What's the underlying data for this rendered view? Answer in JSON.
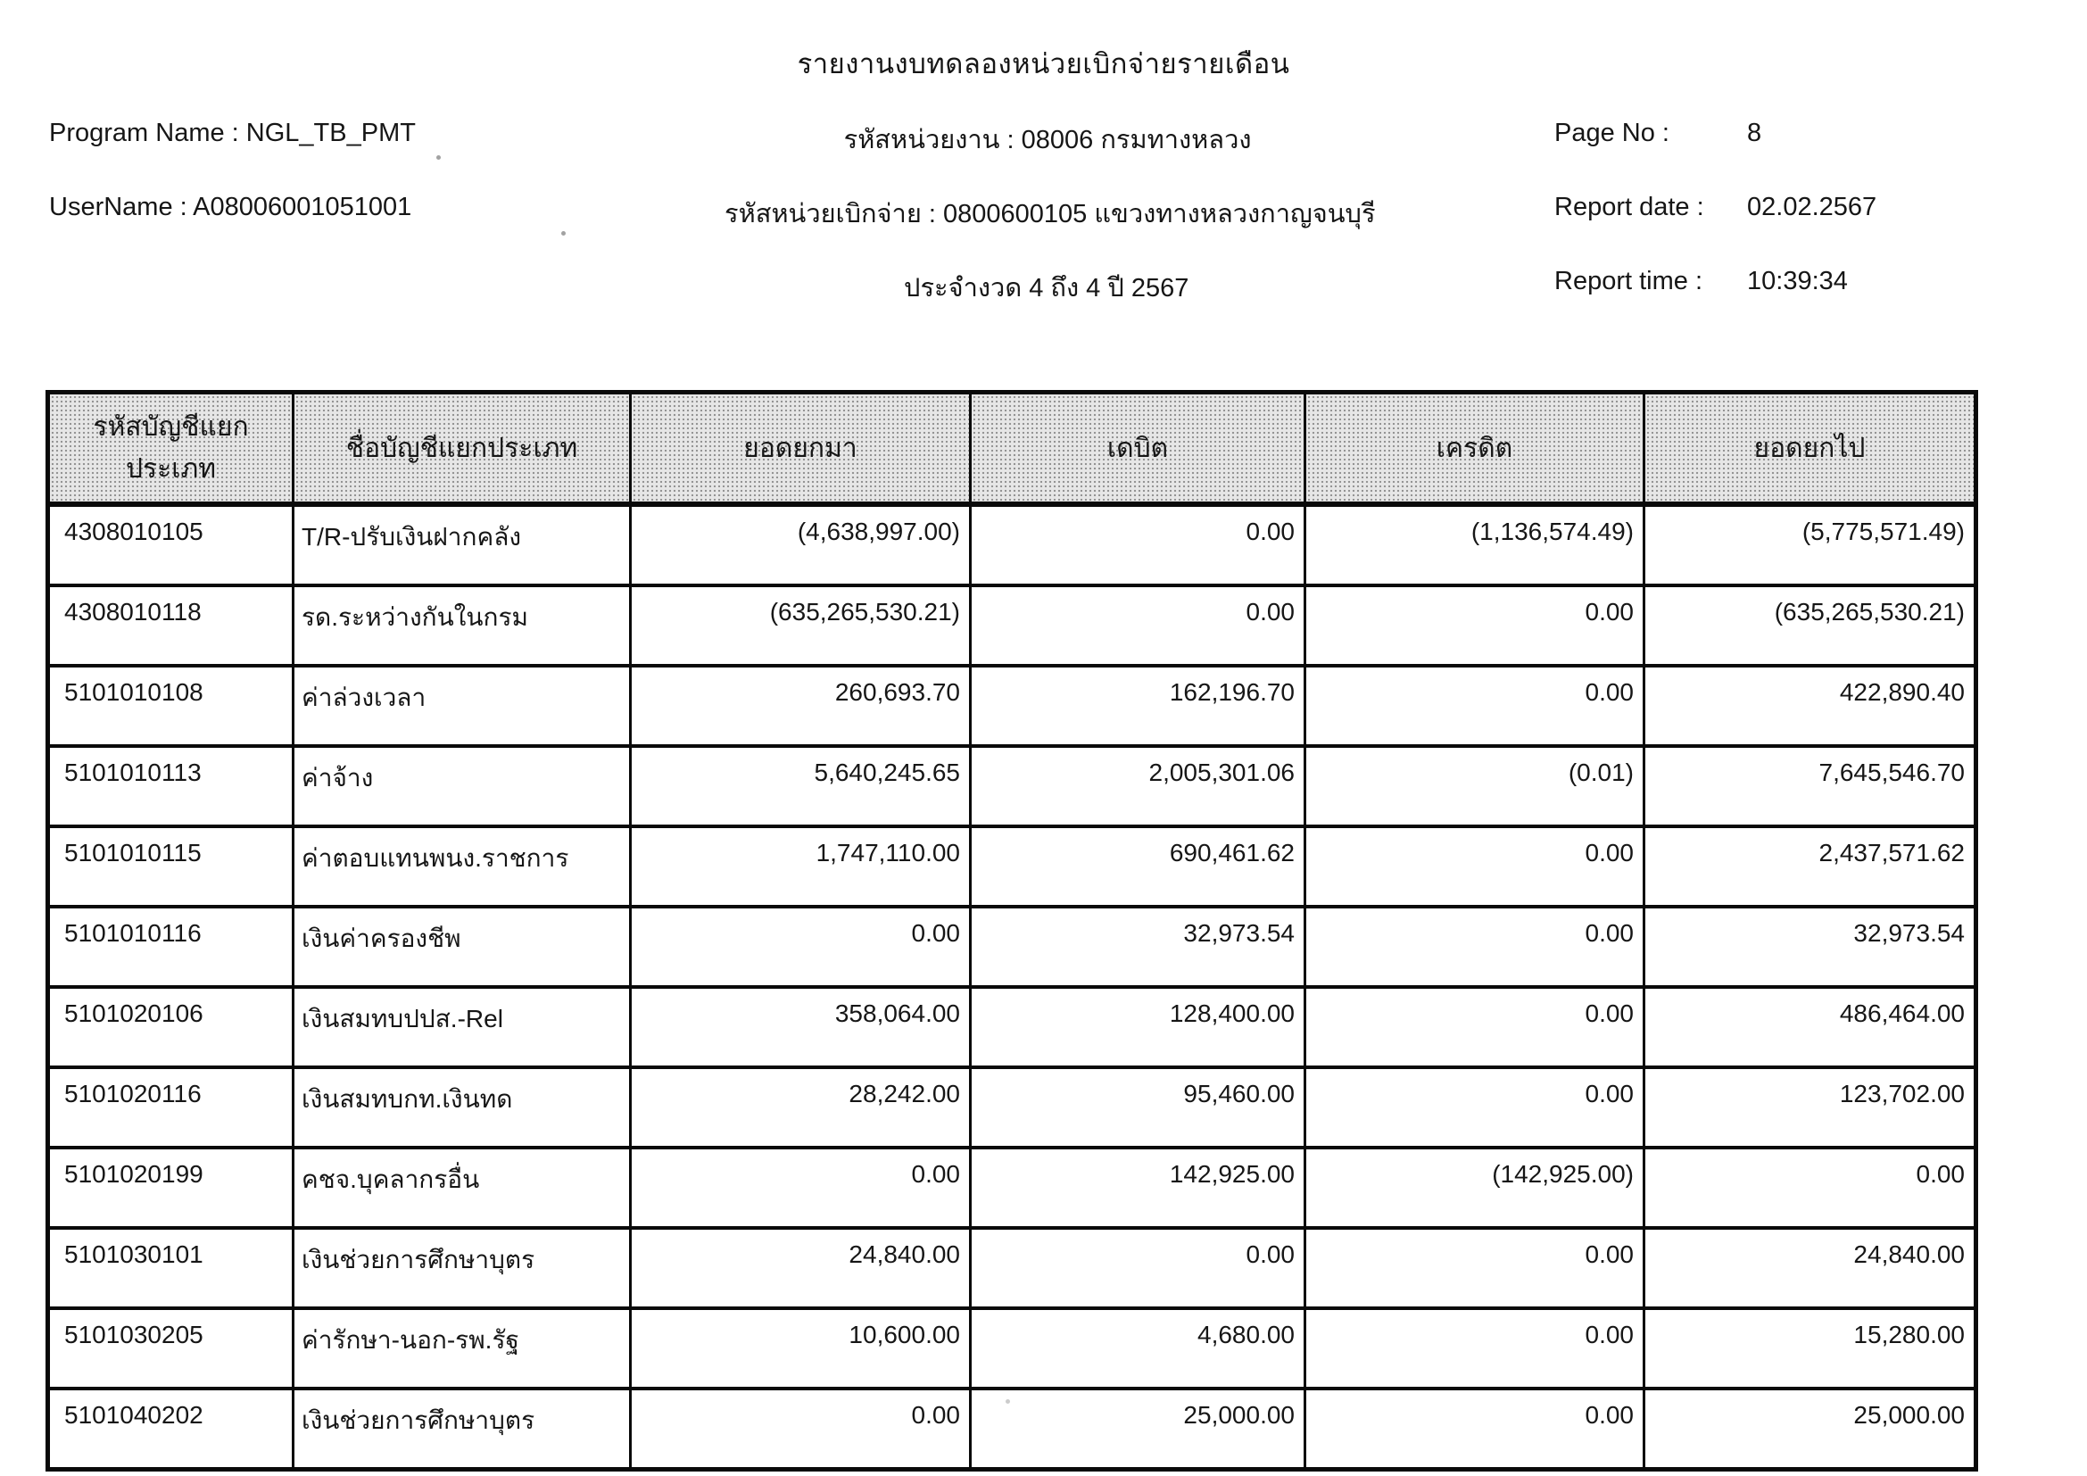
{
  "report": {
    "title": "รายงานงบทดลองหน่วยเบิกจ่ายรายเดือน",
    "program_name_label": "Program Name :",
    "program_name_value": "NGL_TB_PMT",
    "username_label": "UserName :",
    "username_value": "A08006001051001",
    "agency_line": "รหัสหน่วยงาน : 08006 กรมทางหลวง",
    "disbursing_unit_line": "รหัสหน่วยเบิกจ่าย : 0800600105 แขวงทางหลวงกาญจนบุรี",
    "period_line": "ประจำงวด 4 ถึง 4 ปี 2567",
    "page_no_label": "Page No :",
    "page_no_value": "8",
    "report_date_label": "Report date :",
    "report_date_value": "02.02.2567",
    "report_time_label": "Report time :",
    "report_time_value": "10:39:34"
  },
  "table": {
    "headers": [
      "รหัสบัญชีแยกประเภท",
      "ชื่อบัญชีแยกประเภท",
      "ยอดยกมา",
      "เดบิต",
      "เครดิต",
      "ยอดยกไป"
    ],
    "column_roles": [
      "account-code",
      "account-name",
      "beginning-balance",
      "debit",
      "credit",
      "ending-balance"
    ],
    "rows": [
      [
        "4308010105",
        "T/R-ปรับเงินฝากคลัง",
        "(4,638,997.00)",
        "0.00",
        "(1,136,574.49)",
        "(5,775,571.49)"
      ],
      [
        "4308010118",
        "รด.ระหว่างกันในกรม",
        "(635,265,530.21)",
        "0.00",
        "0.00",
        "(635,265,530.21)"
      ],
      [
        "5101010108",
        "ค่าล่วงเวลา",
        "260,693.70",
        "162,196.70",
        "0.00",
        "422,890.40"
      ],
      [
        "5101010113",
        "ค่าจ้าง",
        "5,640,245.65",
        "2,005,301.06",
        "(0.01)",
        "7,645,546.70"
      ],
      [
        "5101010115",
        "ค่าตอบแทนพนง.ราชการ",
        "1,747,110.00",
        "690,461.62",
        "0.00",
        "2,437,571.62"
      ],
      [
        "5101010116",
        "เงินค่าครองชีพ",
        "0.00",
        "32,973.54",
        "0.00",
        "32,973.54"
      ],
      [
        "5101020106",
        "เงินสมทบปปส.-Rel",
        "358,064.00",
        "128,400.00",
        "0.00",
        "486,464.00"
      ],
      [
        "5101020116",
        "เงินสมทบกท.เงินทด",
        "28,242.00",
        "95,460.00",
        "0.00",
        "123,702.00"
      ],
      [
        "5101020199",
        "คชจ.บุคลากรอื่น",
        "0.00",
        "142,925.00",
        "(142,925.00)",
        "0.00"
      ],
      [
        "5101030101",
        "เงินช่วยการศึกษาบุตร",
        "24,840.00",
        "0.00",
        "0.00",
        "24,840.00"
      ],
      [
        "5101030205",
        "ค่ารักษา-นอก-รพ.รัฐ",
        "10,600.00",
        "4,680.00",
        "0.00",
        "15,280.00"
      ],
      [
        "5101040202",
        "เงินช่วยการศึกษาบุตร",
        "0.00",
        "25,000.00",
        "0.00",
        "25,000.00"
      ]
    ]
  },
  "colors": {
    "page_bg": "#ffffff",
    "text": "#161616",
    "table_border": "#0a0a0a",
    "header_cell_bg": "#e6e6e6"
  }
}
